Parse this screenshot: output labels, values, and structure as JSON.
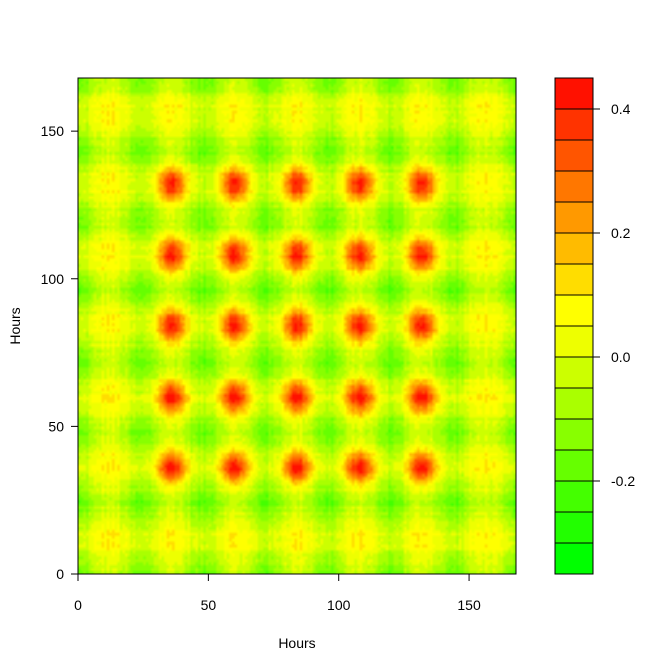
{
  "chart_data": {
    "type": "heatmap",
    "title": "",
    "xlabel": "Hours",
    "ylabel": "Hours",
    "xlim": [
      0,
      168
    ],
    "ylim": [
      0,
      168
    ],
    "x_ticks": [
      0,
      50,
      100,
      150
    ],
    "y_ticks": [
      0,
      50,
      100,
      150
    ],
    "grid": false,
    "grid_resolution": 168,
    "value_range": [
      -0.35,
      0.45
    ],
    "structure": {
      "description_values": "autocorrelation-like pattern repeating every 24 hours",
      "period_hours": 24,
      "hot_block_centers_hours": [
        36,
        60,
        84,
        108,
        132
      ],
      "cold_block_centers_hours": [
        0,
        24,
        48,
        72,
        96,
        120,
        144,
        168
      ]
    },
    "colorbar": {
      "bin_edges": [
        -0.35,
        -0.3,
        -0.25,
        -0.2,
        -0.15,
        -0.1,
        -0.05,
        0.0,
        0.05,
        0.1,
        0.15,
        0.2,
        0.25,
        0.3,
        0.35,
        0.4,
        0.45
      ],
      "colors": [
        "#00FF00",
        "#22FF00",
        "#44FF00",
        "#66FF00",
        "#88FF00",
        "#AAFF00",
        "#CCFF00",
        "#EEFF00",
        "#FFFF00",
        "#FFDD00",
        "#FFBB00",
        "#FF9900",
        "#FF7700",
        "#FF5500",
        "#FF3300",
        "#FF1100"
      ],
      "ticks": [
        -0.2,
        0.0,
        0.2,
        0.4
      ],
      "tick_labels": [
        "-0.2",
        "0.0",
        "0.2",
        "0.4"
      ]
    }
  }
}
